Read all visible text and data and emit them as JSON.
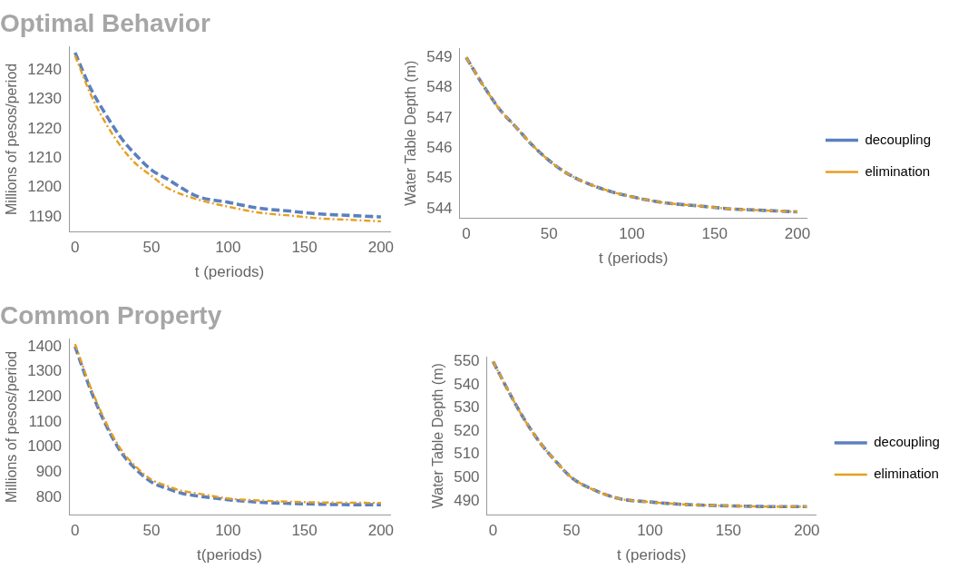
{
  "chart_data": [
    {
      "type": "line",
      "title": "Optimal Behavior",
      "xlabel": "t (periods)",
      "ylabel": "Millions of pesos/period",
      "x": [
        0,
        10,
        20,
        30,
        40,
        50,
        60,
        80,
        100,
        120,
        140,
        160,
        180,
        200
      ],
      "xlim": [
        -4,
        206
      ],
      "xticks": [
        0,
        50,
        100,
        150,
        200
      ],
      "ylim": [
        1185,
        1248
      ],
      "yticks": [
        1190,
        1200,
        1210,
        1220,
        1230,
        1240
      ],
      "grid": false,
      "legend": false,
      "marker": "none",
      "series": [
        {
          "color": "#5b80bf",
          "line_style": "dashed",
          "values": [
            1246,
            1234,
            1225,
            1217,
            1211,
            1206,
            1203,
            1197,
            1195,
            1193,
            1192,
            1191,
            1190.5,
            1190
          ]
        },
        {
          "color": "#e69f1f",
          "line_style": "dashdot",
          "values": [
            1245,
            1232,
            1222,
            1214,
            1208,
            1204,
            1200,
            1196,
            1193.5,
            1191.5,
            1190.5,
            1189.5,
            1189,
            1188.5
          ]
        }
      ]
    },
    {
      "type": "line",
      "xlabel": "t (periods)",
      "ylabel": "Water Table Depth (m)",
      "x": [
        0,
        10,
        20,
        30,
        40,
        50,
        60,
        80,
        100,
        120,
        140,
        160,
        180,
        200
      ],
      "xlim": [
        -4,
        206
      ],
      "xticks": [
        0,
        50,
        100,
        150,
        200
      ],
      "ylim": [
        543.7,
        549.3
      ],
      "yticks": [
        544,
        545,
        546,
        547,
        548,
        549
      ],
      "grid": false,
      "legend": "right",
      "marker": "none",
      "series": [
        {
          "name": "decoupling",
          "color": "#5b80bf",
          "line_style": "dashed",
          "values": [
            549,
            548.1,
            547.3,
            546.7,
            546.1,
            545.6,
            545.2,
            544.7,
            544.4,
            544.2,
            544.1,
            544,
            543.95,
            543.9
          ]
        },
        {
          "name": "elimination",
          "color": "#e69f1f",
          "line_style": "dashdot",
          "values": [
            549,
            548.1,
            547.3,
            546.7,
            546.1,
            545.6,
            545.2,
            544.7,
            544.4,
            544.2,
            544.1,
            544,
            543.95,
            543.9
          ]
        }
      ]
    },
    {
      "type": "line",
      "title": "Common Property",
      "xlabel": "t(periods)",
      "ylabel": "Millions of pesos/period",
      "x": [
        0,
        10,
        20,
        30,
        40,
        50,
        60,
        70,
        80,
        100,
        120,
        140,
        160,
        180,
        200
      ],
      "xlim": [
        -4,
        206
      ],
      "xticks": [
        0,
        50,
        100,
        150,
        200
      ],
      "ylim": [
        730,
        1430
      ],
      "yticks": [
        800,
        900,
        1000,
        1100,
        1200,
        1300,
        1400
      ],
      "grid": false,
      "legend": false,
      "marker": "none",
      "series": [
        {
          "color": "#5b80bf",
          "line_style": "dashed",
          "values": [
            1400,
            1230,
            1090,
            980,
            910,
            860,
            835,
            815,
            805,
            790,
            780,
            775,
            772,
            770,
            770
          ]
        },
        {
          "color": "#e69f1f",
          "line_style": "dashdot",
          "values": [
            1410,
            1240,
            1100,
            990,
            920,
            870,
            845,
            825,
            815,
            795,
            787,
            782,
            779,
            778,
            777
          ]
        }
      ]
    },
    {
      "type": "line",
      "xlabel": "t (periods)",
      "ylabel": "Water Table Depth (m)",
      "x": [
        0,
        10,
        20,
        30,
        40,
        50,
        60,
        80,
        100,
        120,
        140,
        160,
        180,
        200
      ],
      "xlim": [
        -4,
        206
      ],
      "xticks": [
        0,
        50,
        100,
        150,
        200
      ],
      "ylim": [
        484,
        552
      ],
      "yticks": [
        490,
        500,
        510,
        520,
        530,
        540,
        550
      ],
      "grid": false,
      "legend": "right",
      "marker": "none",
      "series": [
        {
          "name": "decoupling",
          "color": "#5b80bf",
          "line_style": "dashed",
          "values": [
            550,
            537,
            525,
            515,
            507,
            500,
            496,
            491,
            489.5,
            488.5,
            488,
            487.7,
            487.5,
            487.5
          ]
        },
        {
          "name": "elimination",
          "color": "#e69f1f",
          "line_style": "dashdot",
          "values": [
            550,
            537,
            525,
            515,
            507,
            500,
            496,
            491,
            489.5,
            488.5,
            488,
            487.7,
            487.5,
            487.5
          ]
        }
      ]
    }
  ]
}
